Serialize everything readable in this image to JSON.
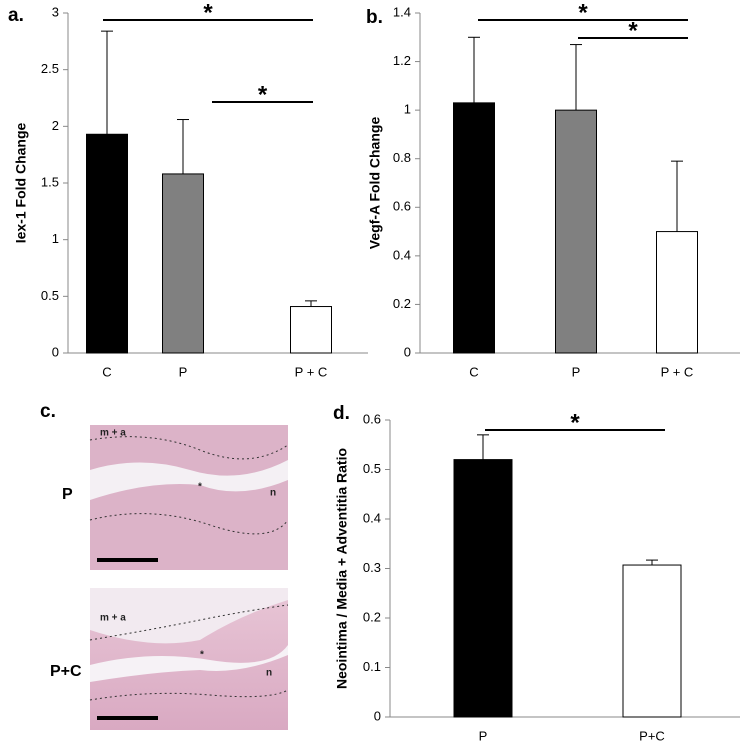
{
  "chart_data": [
    {
      "type": "bar",
      "panel": "a.",
      "ylabel": "Iex-1 Fold Change",
      "categories": [
        "C",
        "P",
        "P + C"
      ],
      "values": [
        1.93,
        1.58,
        0.41
      ],
      "errors": [
        0.91,
        0.48,
        0.05
      ],
      "colors": [
        "#000000",
        "#808080",
        "#ffffff"
      ],
      "ylim": [
        0,
        3
      ],
      "yticks": [
        0,
        0.5,
        1,
        1.5,
        2,
        2.5,
        3
      ],
      "annotations": [
        "*",
        "*"
      ]
    },
    {
      "type": "bar",
      "panel": "b.",
      "ylabel": "Vegf-A Fold Change",
      "categories": [
        "C",
        "P",
        "P + C"
      ],
      "values": [
        1.03,
        1.0,
        0.5
      ],
      "errors": [
        0.27,
        0.27,
        0.29
      ],
      "colors": [
        "#000000",
        "#808080",
        "#ffffff"
      ],
      "ylim": [
        0,
        1.4
      ],
      "yticks": [
        0,
        0.2,
        0.4,
        0.6,
        0.8,
        1,
        1.2,
        1.4
      ],
      "annotations": [
        "*",
        "*"
      ]
    },
    {
      "type": "bar",
      "panel": "d.",
      "ylabel": "Neointima / Media + Adventitia Ratio",
      "categories": [
        "P",
        "P+C"
      ],
      "values": [
        0.52,
        0.307
      ],
      "errors": [
        0.05,
        0.01
      ],
      "colors": [
        "#000000",
        "#ffffff"
      ],
      "ylim": [
        0,
        0.6
      ],
      "yticks": [
        0,
        0.1,
        0.2,
        0.3,
        0.4,
        0.5,
        0.6
      ],
      "annotations": [
        "*"
      ]
    }
  ],
  "histology": {
    "panel": "c.",
    "images": [
      {
        "label": "P",
        "annotations": [
          "m + a",
          "*",
          "n"
        ]
      },
      {
        "label": "P+C",
        "annotations": [
          "m + a",
          "*",
          "n"
        ]
      }
    ]
  }
}
